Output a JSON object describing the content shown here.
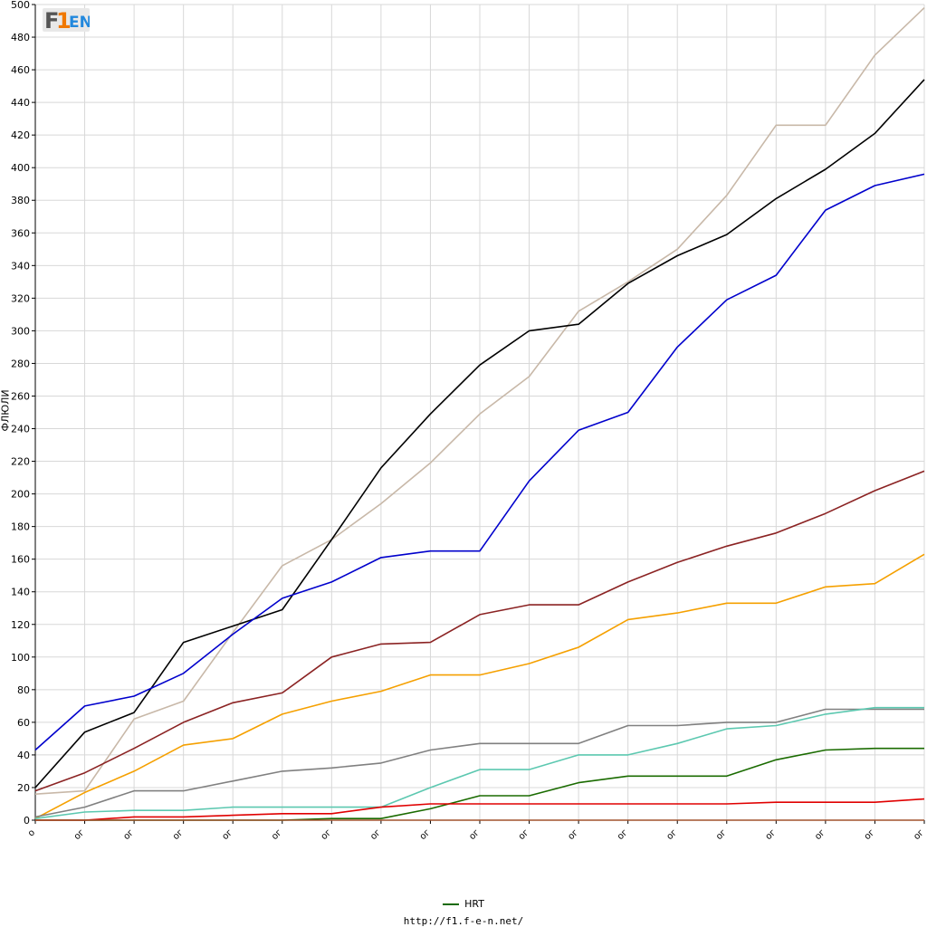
{
  "chart_data": {
    "type": "line",
    "title": "",
    "xlabel": "",
    "ylabel": "ФЛЮЛИ",
    "ylim": [
      0,
      500
    ],
    "y_ticks": [
      0,
      20,
      40,
      60,
      80,
      100,
      120,
      140,
      160,
      180,
      200,
      220,
      240,
      260,
      280,
      300,
      320,
      340,
      360,
      380,
      400,
      420,
      440,
      460,
      480,
      500
    ],
    "categories": [
      "о",
      "ог",
      "ог",
      "ог",
      "ог",
      "ог",
      "ог",
      "ог",
      "ог",
      "ог",
      "ог",
      "ог",
      "ог",
      "ог",
      "ог",
      "ог",
      "ог",
      "ог",
      "ог"
    ],
    "grid": true,
    "legend_position": "bottom",
    "series": [
      {
        "color": "#c8b8a8",
        "values": [
          16,
          18,
          62,
          73,
          115,
          156,
          172,
          194,
          219,
          249,
          272,
          312,
          330,
          350,
          383,
          426,
          426,
          469,
          498
        ]
      },
      {
        "color": "#000000",
        "values": [
          20,
          54,
          66,
          109,
          119,
          129,
          172,
          216,
          249,
          279,
          300,
          304,
          329,
          346,
          359,
          381,
          399,
          421,
          454
        ]
      },
      {
        "color": "#0000cc",
        "values": [
          43,
          70,
          76,
          90,
          114,
          136,
          146,
          161,
          165,
          165,
          208,
          239,
          250,
          290,
          319,
          334,
          374,
          389,
          396
        ]
      },
      {
        "color": "#8b2323",
        "values": [
          18,
          29,
          44,
          60,
          72,
          78,
          100,
          108,
          109,
          126,
          132,
          132,
          146,
          158,
          168,
          176,
          188,
          202,
          214
        ]
      },
      {
        "color": "#f5a000",
        "values": [
          1,
          17,
          30,
          46,
          50,
          65,
          73,
          79,
          89,
          89,
          96,
          106,
          123,
          127,
          133,
          133,
          143,
          145,
          163
        ]
      },
      {
        "color": "#808080",
        "values": [
          2,
          8,
          18,
          18,
          24,
          30,
          32,
          35,
          43,
          47,
          47,
          47,
          58,
          58,
          60,
          60,
          68,
          68,
          68
        ]
      },
      {
        "color": "#5cc8b0",
        "values": [
          1,
          5,
          6,
          6,
          8,
          8,
          8,
          8,
          20,
          31,
          31,
          40,
          40,
          47,
          56,
          58,
          65,
          69,
          69
        ]
      },
      {
        "name": "HRT",
        "color": "#1a6b00",
        "values": [
          0,
          0,
          0,
          0,
          0,
          0,
          1,
          1,
          7,
          15,
          15,
          23,
          27,
          27,
          27,
          37,
          43,
          44,
          44
        ]
      },
      {
        "color": "#e00000",
        "values": [
          0,
          0,
          2,
          2,
          3,
          4,
          4,
          8,
          10,
          10,
          10,
          10,
          10,
          10,
          10,
          11,
          11,
          11,
          13
        ]
      },
      {
        "color": "#a0522d",
        "values": [
          0,
          0,
          0,
          0,
          0,
          0,
          0,
          0,
          0,
          0,
          0,
          0,
          0,
          0,
          0,
          0,
          0,
          0,
          0
        ]
      }
    ]
  },
  "logo": {
    "text": "F1EN",
    "colors": [
      "#555555",
      "#f07800",
      "#2288dd"
    ]
  },
  "legend": {
    "label": "HRT"
  },
  "footer": {
    "url": "http://f1.f-e-n.net/"
  }
}
